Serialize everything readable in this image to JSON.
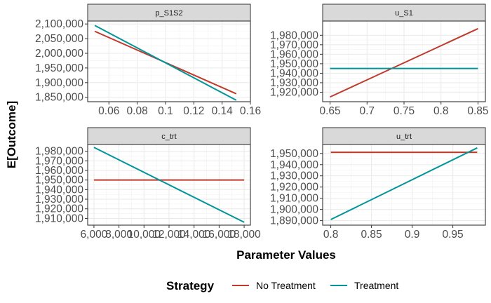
{
  "chart_data": {
    "type": "line",
    "xlabel": "Parameter Values",
    "ylabel": "E[Outcome]",
    "legend": {
      "title": "Strategy",
      "placement": "bottom",
      "entries": [
        {
          "name": "No Treatment",
          "color": "#C0392B"
        },
        {
          "name": "Treatment",
          "color": "#00959A"
        }
      ]
    },
    "grid": true,
    "panels": [
      {
        "title": "p_S1S2",
        "xlim": [
          0.045,
          0.16
        ],
        "ylim": [
          1835000,
          2110000
        ],
        "xticks": [
          0.06,
          0.08,
          0.1,
          0.12,
          0.14,
          0.16
        ],
        "xtick_labels": [
          "0.06",
          "0.08",
          "0.1",
          "0.12",
          "0.14",
          "0.16"
        ],
        "yticks": [
          1850000,
          1900000,
          1950000,
          2000000,
          2050000,
          2100000
        ],
        "ytick_labels": [
          "1,850,000",
          "1,900,000",
          "1,950,000",
          "2,000,000",
          "2,050,000",
          "2,100,000"
        ],
        "series": [
          {
            "name": "No Treatment",
            "x": [
              0.05,
              0.15
            ],
            "y": [
              2075000,
              1862000
            ]
          },
          {
            "name": "Treatment",
            "x": [
              0.05,
              0.15
            ],
            "y": [
              2095000,
              1840000
            ]
          }
        ]
      },
      {
        "title": "u_S1",
        "xlim": [
          0.64,
          0.86
        ],
        "ylim": [
          1910000,
          1995000
        ],
        "xticks": [
          0.65,
          0.7,
          0.75,
          0.8,
          0.85
        ],
        "xtick_labels": [
          "0.65",
          "0.7",
          "0.75",
          "0.8",
          "0.85"
        ],
        "yticks": [
          1920000,
          1930000,
          1940000,
          1950000,
          1960000,
          1970000,
          1980000
        ],
        "ytick_labels": [
          "1,920,000",
          "1,930,000",
          "1,940,000",
          "1,950,000",
          "1,960,000",
          "1,970,000",
          "1,980,000"
        ],
        "series": [
          {
            "name": "No Treatment",
            "x": [
              0.65,
              0.85
            ],
            "y": [
              1915000,
              1987000
            ]
          },
          {
            "name": "Treatment",
            "x": [
              0.65,
              0.85
            ],
            "y": [
              1945000,
              1945000
            ]
          }
        ]
      },
      {
        "title": "c_trt",
        "xlim": [
          5500,
          18500
        ],
        "ylim": [
          1903000,
          1987000
        ],
        "xticks": [
          6000,
          8000,
          10000,
          12000,
          14000,
          16000,
          18000
        ],
        "xtick_labels": [
          "6,000",
          "8,000",
          "10,000",
          "12,000",
          "14,000",
          "16,000",
          "18,000"
        ],
        "yticks": [
          1910000,
          1920000,
          1930000,
          1940000,
          1950000,
          1960000,
          1970000,
          1980000
        ],
        "ytick_labels": [
          "1,910,000",
          "1,920,000",
          "1,930,000",
          "1,940,000",
          "1,950,000",
          "1,960,000",
          "1,970,000",
          "1,980,000"
        ],
        "series": [
          {
            "name": "No Treatment",
            "x": [
              6000,
              18000
            ],
            "y": [
              1950000,
              1950000
            ]
          },
          {
            "name": "Treatment",
            "x": [
              6000,
              18000
            ],
            "y": [
              1984000,
              1906000
            ]
          }
        ]
      },
      {
        "title": "u_trt",
        "xlim": [
          0.79,
          0.99
        ],
        "ylim": [
          1886000,
          1958000
        ],
        "xticks": [
          0.8,
          0.85,
          0.9,
          0.95
        ],
        "xtick_labels": [
          "0.8",
          "0.85",
          "0.9",
          "0.95"
        ],
        "yticks": [
          1890000,
          1900000,
          1910000,
          1920000,
          1930000,
          1940000,
          1950000
        ],
        "ytick_labels": [
          "1,890,000",
          "1,900,000",
          "1,910,000",
          "1,920,000",
          "1,930,000",
          "1,940,000",
          "1,950,000"
        ],
        "series": [
          {
            "name": "No Treatment",
            "x": [
              0.8,
              0.98
            ],
            "y": [
              1951000,
              1951000
            ]
          },
          {
            "name": "Treatment",
            "x": [
              0.8,
              0.98
            ],
            "y": [
              1891000,
              1955000
            ]
          }
        ]
      }
    ]
  }
}
